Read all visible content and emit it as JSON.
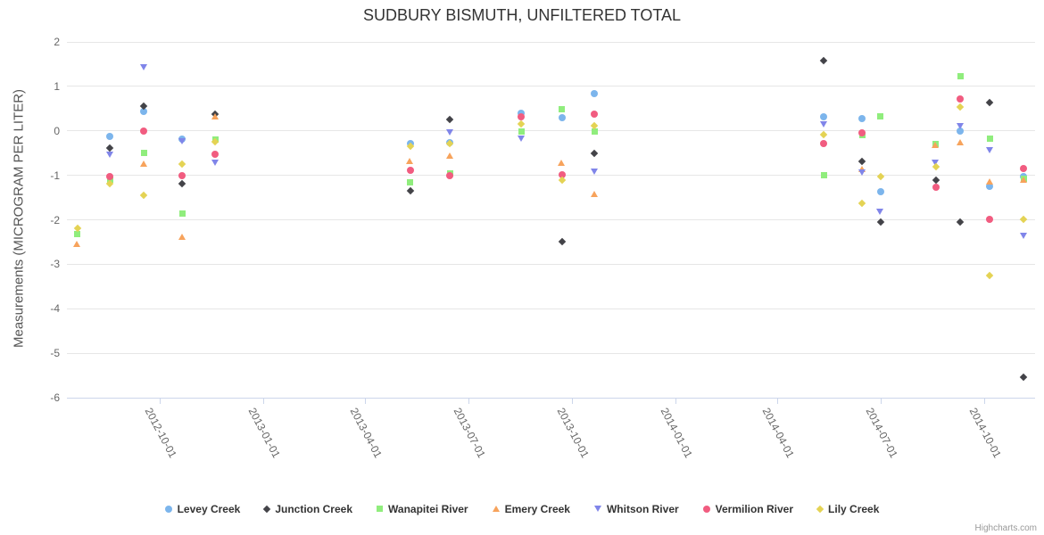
{
  "credit": "Highcharts.com",
  "chart_data": {
    "type": "scatter",
    "title": "SUDBURY BISMUTH, UNFILTERED TOTAL",
    "xlabel": "",
    "ylabel": "Measurements (MICROGRAM PER LITER)",
    "ylim": [
      -6,
      2
    ],
    "grid": "horizontal",
    "legend_position": "bottom",
    "y_ticks": [
      2,
      1,
      0,
      -1,
      -2,
      -3,
      -4,
      -5,
      -6
    ],
    "x_ticks": [
      "2012-10-01",
      "2013-01-01",
      "2013-04-01",
      "2013-07-01",
      "2013-10-01",
      "2014-01-01",
      "2014-04-01",
      "2014-07-01",
      "2014-10-01"
    ],
    "series": [
      {
        "name": "Levey Creek",
        "color": "#7cb5ec",
        "symbol": "circle",
        "points": [
          [
            "2012-08-18",
            -0.13
          ],
          [
            "2012-09-17",
            0.44
          ],
          [
            "2012-10-21",
            -0.18
          ],
          [
            "2013-05-11",
            -0.28
          ],
          [
            "2013-06-15",
            -0.26
          ],
          [
            "2013-08-17",
            0.4
          ],
          [
            "2013-09-22",
            0.3
          ],
          [
            "2013-10-21",
            0.84
          ],
          [
            "2014-05-12",
            0.32
          ],
          [
            "2014-06-15",
            0.28
          ],
          [
            "2014-07-01",
            -1.36
          ],
          [
            "2014-09-10",
            0.0
          ],
          [
            "2014-10-06",
            -1.24
          ],
          [
            "2014-11-05",
            -1.02
          ]
        ]
      },
      {
        "name": "Junction Creek",
        "color": "#434348",
        "symbol": "diamond",
        "points": [
          [
            "2012-08-18",
            -0.39
          ],
          [
            "2012-09-17",
            0.56
          ],
          [
            "2012-10-21",
            -1.18
          ],
          [
            "2012-11-19",
            0.38
          ],
          [
            "2013-05-11",
            -1.34
          ],
          [
            "2013-06-15",
            0.26
          ],
          [
            "2013-09-22",
            -2.5
          ],
          [
            "2013-10-21",
            -0.51
          ],
          [
            "2014-05-12",
            1.58
          ],
          [
            "2014-06-15",
            -0.68
          ],
          [
            "2014-07-01",
            -2.06
          ],
          [
            "2014-08-19",
            -1.1
          ],
          [
            "2014-09-10",
            -2.06
          ],
          [
            "2014-10-06",
            0.64
          ],
          [
            "2014-11-05",
            -5.54
          ]
        ]
      },
      {
        "name": "Wanapitei River",
        "color": "#90ed7d",
        "symbol": "square",
        "points": [
          [
            "2012-07-20",
            -2.32
          ],
          [
            "2012-08-18",
            -1.1
          ],
          [
            "2012-09-17",
            -0.49
          ],
          [
            "2012-10-21",
            -1.86
          ],
          [
            "2012-11-19",
            -0.2
          ],
          [
            "2013-05-11",
            -1.16
          ],
          [
            "2013-06-15",
            -0.96
          ],
          [
            "2013-08-17",
            -0.02
          ],
          [
            "2013-09-22",
            0.48
          ],
          [
            "2013-10-21",
            -0.02
          ],
          [
            "2014-05-12",
            -1.0
          ],
          [
            "2014-06-15",
            -0.1
          ],
          [
            "2014-07-01",
            0.32
          ],
          [
            "2014-08-19",
            -0.3
          ],
          [
            "2014-09-10",
            1.22
          ],
          [
            "2014-10-06",
            -0.18
          ],
          [
            "2014-11-05",
            -1.08
          ]
        ]
      },
      {
        "name": "Emery Creek",
        "color": "#f7a35c",
        "symbol": "triangle",
        "points": [
          [
            "2012-07-20",
            -2.54
          ],
          [
            "2012-09-17",
            -0.73
          ],
          [
            "2012-10-21",
            -2.38
          ],
          [
            "2012-11-19",
            0.32
          ],
          [
            "2013-05-11",
            -0.68
          ],
          [
            "2013-06-15",
            -0.56
          ],
          [
            "2013-09-22",
            -0.71
          ],
          [
            "2013-10-21",
            -1.41
          ],
          [
            "2014-06-15",
            -0.85
          ],
          [
            "2014-08-19",
            -0.32
          ],
          [
            "2014-09-10",
            -0.26
          ],
          [
            "2014-10-06",
            -1.14
          ],
          [
            "2014-11-05",
            -1.1
          ]
        ]
      },
      {
        "name": "Whitson River",
        "color": "#8085e9",
        "symbol": "triangle-down",
        "points": [
          [
            "2012-08-18",
            -0.53
          ],
          [
            "2012-09-17",
            1.42
          ],
          [
            "2012-10-21",
            -0.24
          ],
          [
            "2012-11-19",
            -0.71
          ],
          [
            "2013-06-15",
            -0.04
          ],
          [
            "2013-08-17",
            -0.18
          ],
          [
            "2013-10-21",
            -0.91
          ],
          [
            "2014-05-12",
            0.14
          ],
          [
            "2014-06-15",
            -0.94
          ],
          [
            "2014-07-01",
            -1.82
          ],
          [
            "2014-08-19",
            -0.72
          ],
          [
            "2014-09-10",
            0.1
          ],
          [
            "2014-10-06",
            -0.44
          ],
          [
            "2014-11-05",
            -2.36
          ]
        ]
      },
      {
        "name": "Vermilion River",
        "color": "#f15c80",
        "symbol": "circle",
        "points": [
          [
            "2012-08-18",
            -1.02
          ],
          [
            "2012-09-17",
            0.0
          ],
          [
            "2012-10-21",
            -1.0
          ],
          [
            "2012-11-19",
            -0.53
          ],
          [
            "2013-05-11",
            -0.88
          ],
          [
            "2013-06-15",
            -1.0
          ],
          [
            "2013-08-17",
            0.32
          ],
          [
            "2013-09-22",
            -0.99
          ],
          [
            "2013-10-21",
            0.38
          ],
          [
            "2014-05-12",
            -0.28
          ],
          [
            "2014-06-15",
            -0.04
          ],
          [
            "2014-08-19",
            -1.26
          ],
          [
            "2014-09-10",
            0.72
          ],
          [
            "2014-10-06",
            -1.98
          ],
          [
            "2014-11-05",
            -0.84
          ]
        ]
      },
      {
        "name": "Lily Creek",
        "color": "#e4d354",
        "symbol": "diamond",
        "points": [
          [
            "2012-07-20",
            -2.2
          ],
          [
            "2012-08-18",
            -1.18
          ],
          [
            "2012-09-17",
            -1.45
          ],
          [
            "2012-10-21",
            -0.74
          ],
          [
            "2012-11-19",
            -0.24
          ],
          [
            "2013-05-11",
            -0.34
          ],
          [
            "2013-06-15",
            -0.28
          ],
          [
            "2013-08-17",
            0.16
          ],
          [
            "2013-09-22",
            -1.11
          ],
          [
            "2013-10-21",
            0.12
          ],
          [
            "2014-05-12",
            -0.08
          ],
          [
            "2014-06-15",
            -1.62
          ],
          [
            "2014-07-01",
            -1.02
          ],
          [
            "2014-08-19",
            -0.8
          ],
          [
            "2014-09-10",
            0.54
          ],
          [
            "2014-10-06",
            -3.26
          ],
          [
            "2014-11-05",
            -1.98
          ]
        ]
      }
    ]
  }
}
